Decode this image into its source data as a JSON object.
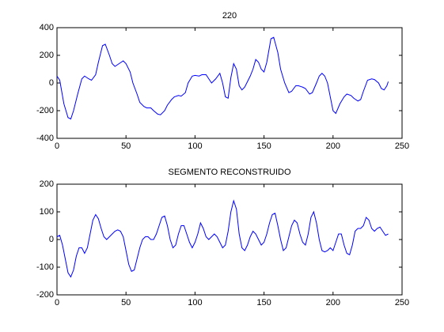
{
  "chart_data": [
    {
      "type": "line",
      "title": "220",
      "x": [
        0,
        2,
        5,
        8,
        10,
        12,
        15,
        18,
        20,
        23,
        25,
        28,
        30,
        33,
        35,
        38,
        40,
        42,
        45,
        48,
        50,
        53,
        55,
        58,
        60,
        63,
        65,
        68,
        70,
        73,
        75,
        78,
        80,
        83,
        85,
        88,
        90,
        93,
        95,
        98,
        100,
        103,
        105,
        108,
        110,
        112,
        115,
        118,
        120,
        122,
        124,
        126,
        128,
        130,
        132,
        134,
        136,
        138,
        140,
        142,
        144,
        146,
        148,
        150,
        152,
        155,
        157,
        160,
        162,
        165,
        168,
        170,
        173,
        175,
        178,
        180,
        183,
        185,
        188,
        190,
        192,
        194,
        196,
        198,
        200,
        202,
        205,
        208,
        210,
        213,
        215,
        218,
        220,
        222,
        225,
        228,
        230,
        233,
        235,
        237,
        239,
        240
      ],
      "values": [
        50,
        20,
        -150,
        -250,
        -260,
        -200,
        -80,
        30,
        50,
        30,
        20,
        60,
        150,
        270,
        280,
        200,
        140,
        120,
        140,
        160,
        140,
        80,
        0,
        -80,
        -140,
        -170,
        -180,
        -180,
        -200,
        -225,
        -230,
        -200,
        -160,
        -120,
        -100,
        -90,
        -95,
        -70,
        0,
        50,
        55,
        50,
        60,
        60,
        30,
        0,
        30,
        70,
        0,
        -100,
        -110,
        40,
        140,
        100,
        -20,
        -50,
        -30,
        10,
        50,
        100,
        170,
        150,
        100,
        80,
        150,
        320,
        330,
        220,
        100,
        0,
        -70,
        -60,
        -20,
        -20,
        -30,
        -40,
        -80,
        -70,
        0,
        50,
        70,
        50,
        0,
        -100,
        -200,
        -220,
        -150,
        -100,
        -80,
        -90,
        -110,
        -130,
        -120,
        -60,
        20,
        30,
        25,
        0,
        -40,
        -50,
        -20,
        10
      ],
      "color": "#0000ff",
      "xlim": [
        0,
        250
      ],
      "xticks": [
        0,
        50,
        100,
        150,
        200,
        250
      ],
      "ylim": [
        -400,
        400
      ],
      "yticks": [
        -400,
        -200,
        0,
        200,
        400
      ]
    },
    {
      "type": "line",
      "title": "SEGMENTO RECONSTRUIDO",
      "x": [
        0,
        2,
        4,
        6,
        8,
        10,
        12,
        14,
        16,
        18,
        20,
        22,
        24,
        26,
        28,
        30,
        32,
        34,
        36,
        38,
        40,
        42,
        44,
        46,
        48,
        50,
        52,
        54,
        56,
        58,
        60,
        62,
        64,
        66,
        68,
        70,
        72,
        74,
        76,
        78,
        80,
        82,
        84,
        86,
        88,
        90,
        92,
        94,
        96,
        98,
        100,
        102,
        104,
        106,
        108,
        110,
        112,
        114,
        116,
        118,
        120,
        122,
        124,
        126,
        128,
        130,
        132,
        134,
        136,
        138,
        140,
        142,
        144,
        146,
        148,
        150,
        152,
        154,
        156,
        158,
        160,
        162,
        164,
        166,
        168,
        170,
        172,
        174,
        176,
        178,
        180,
        182,
        184,
        186,
        188,
        190,
        192,
        194,
        196,
        198,
        200,
        202,
        204,
        206,
        208,
        210,
        212,
        214,
        216,
        218,
        220,
        222,
        224,
        226,
        228,
        230,
        232,
        234,
        236,
        238,
        240
      ],
      "values": [
        10,
        15,
        -20,
        -70,
        -120,
        -135,
        -110,
        -60,
        -30,
        -30,
        -50,
        -30,
        20,
        70,
        90,
        75,
        40,
        10,
        0,
        10,
        20,
        30,
        35,
        30,
        10,
        -40,
        -90,
        -115,
        -110,
        -70,
        -30,
        0,
        10,
        10,
        0,
        0,
        20,
        50,
        80,
        85,
        50,
        0,
        -30,
        -20,
        20,
        50,
        50,
        20,
        -10,
        -30,
        -10,
        20,
        60,
        40,
        10,
        0,
        10,
        20,
        10,
        -10,
        -30,
        -20,
        30,
        100,
        140,
        110,
        20,
        -30,
        -40,
        -20,
        10,
        30,
        20,
        0,
        -20,
        -10,
        20,
        60,
        90,
        95,
        50,
        0,
        -40,
        -30,
        10,
        50,
        70,
        60,
        20,
        -10,
        -20,
        20,
        80,
        100,
        60,
        0,
        -40,
        -45,
        -40,
        -30,
        -40,
        -10,
        20,
        20,
        -20,
        -50,
        -55,
        -20,
        30,
        40,
        40,
        50,
        80,
        70,
        40,
        30,
        40,
        45,
        30,
        15,
        20
      ],
      "color": "#0000ff",
      "xlim": [
        0,
        250
      ],
      "xticks": [
        0,
        50,
        100,
        150,
        200,
        250
      ],
      "ylim": [
        -200,
        200
      ],
      "yticks": [
        -200,
        -100,
        0,
        100,
        200
      ]
    }
  ]
}
